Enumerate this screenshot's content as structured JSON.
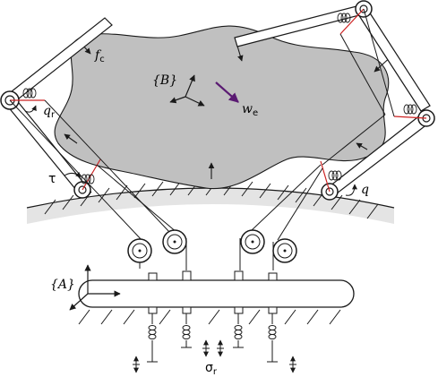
{
  "labels": {
    "fc": {
      "main": "f",
      "sub": "c"
    },
    "B": {
      "main": "{B}"
    },
    "we": {
      "main": "w",
      "sub": "e"
    },
    "qr": {
      "main": "q",
      "sub": "r"
    },
    "tau": {
      "main": "τ"
    },
    "q": {
      "main": "q"
    },
    "A": {
      "main": "{A}"
    },
    "sigma_r": {
      "main": "σ",
      "sub": "r"
    }
  },
  "colors": {
    "object_fill": "#c0c0c0",
    "stroke": "#1a1a1a",
    "joint_line": "#cc2222",
    "wrench_arrow": "#5a1a72",
    "ground_shadow": "#e4e4e4"
  }
}
